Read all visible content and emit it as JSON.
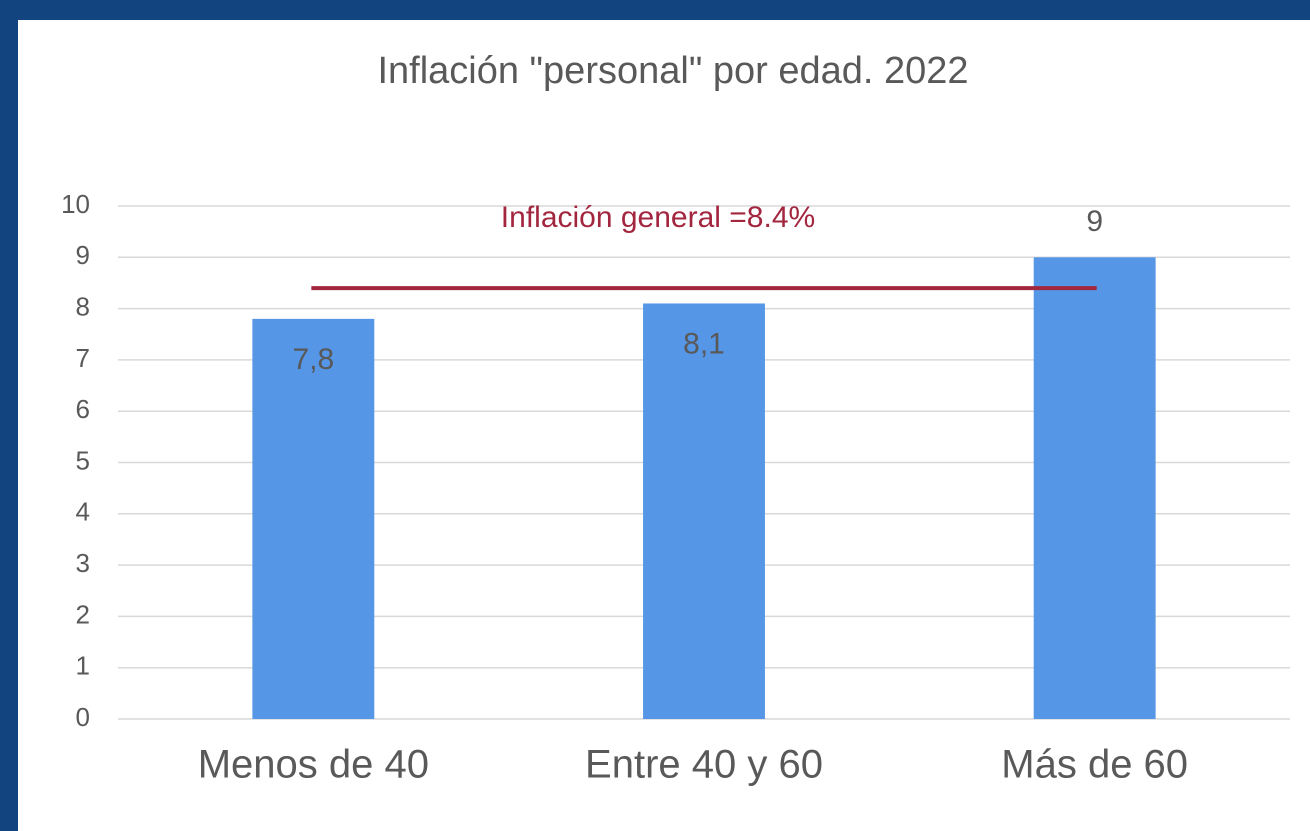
{
  "chart_data": {
    "type": "bar",
    "title": "Inflación \"personal\" por edad. 2022",
    "categories": [
      "Menos de 40",
      "Entre 40 y 60",
      "Más de 60"
    ],
    "values": [
      7.8,
      8.1,
      9
    ],
    "value_labels": [
      "7,8",
      "8,1",
      "9"
    ],
    "color": "#5596e6",
    "ylim": [
      0,
      10
    ],
    "yticks": [
      0,
      1,
      2,
      3,
      4,
      5,
      6,
      7,
      8,
      9,
      10
    ],
    "grid": true,
    "reference_line": {
      "value": 8.4,
      "label": "Inflación general =8.4%",
      "color": "#a3263f"
    }
  }
}
